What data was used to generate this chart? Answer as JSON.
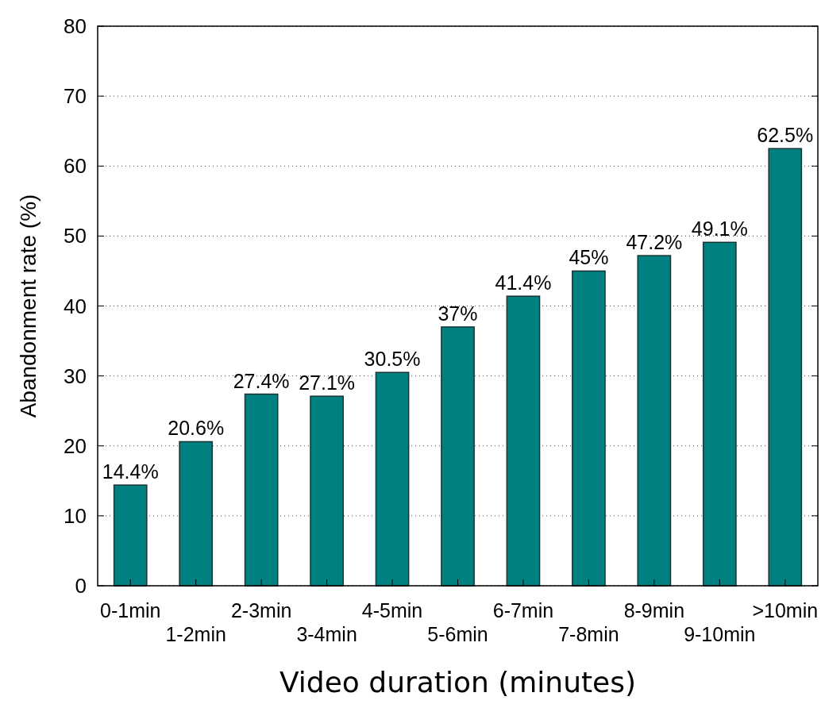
{
  "chart_data": {
    "type": "bar",
    "xlabel": "Video duration (minutes)",
    "ylabel": "Abandonment rate (%)",
    "categories": [
      "0-1min",
      "1-2min",
      "2-3min",
      "3-4min",
      "4-5min",
      "5-6min",
      "6-7min",
      "7-8min",
      "8-9min",
      "9-10min",
      ">10min"
    ],
    "values": [
      14.4,
      20.6,
      27.4,
      27.1,
      30.5,
      37,
      41.4,
      45,
      47.2,
      49.1,
      62.5
    ],
    "value_labels": [
      "14.4%",
      "20.6%",
      "27.4%",
      "27.1%",
      "30.5%",
      "37%",
      "41.4%",
      "45%",
      "47.2%",
      "49.1%",
      "62.5%"
    ],
    "color": "#008080",
    "ylim": [
      0,
      80
    ],
    "yticks": [
      0,
      10,
      20,
      30,
      40,
      50,
      60,
      70,
      80
    ],
    "grid": "y"
  }
}
